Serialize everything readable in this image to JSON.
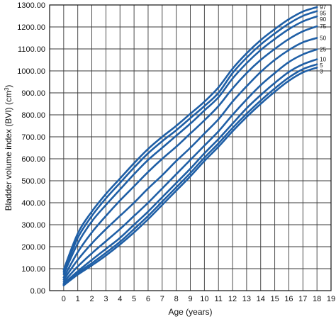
{
  "chart_data": {
    "type": "line",
    "xlabel": "Age (years)",
    "ylabel": "Bladder volume index (BVI) (cm",
    "ylabel_sup": "3",
    "ylabel_close": ")",
    "xlim": [
      -1,
      19
    ],
    "ylim": [
      0,
      1300
    ],
    "x_ticks": [
      "0",
      "1",
      "2",
      "3",
      "4",
      "5",
      "6",
      "7",
      "8",
      "9",
      "10",
      "11",
      "12",
      "13",
      "14",
      "15",
      "16",
      "17",
      "18",
      "19"
    ],
    "y_ticks": [
      "0.00",
      "100.00",
      "200.00",
      "300.00",
      "400.00",
      "500.00",
      "600.00",
      "700.00",
      "800.00",
      "900.00",
      "1000.00",
      "1100.00",
      "1200.00",
      "1300.00"
    ],
    "grid": true,
    "line_color": "#1f5fa6",
    "x": [
      0,
      1,
      2,
      3,
      4,
      5,
      6,
      7,
      8,
      9,
      10,
      11,
      12,
      13,
      14,
      15,
      16,
      17,
      18
    ],
    "series": [
      {
        "name": "97",
        "values": [
          95,
          260,
          360,
          440,
          510,
          580,
          645,
          700,
          750,
          805,
          860,
          925,
          1010,
          1080,
          1140,
          1190,
          1235,
          1270,
          1290
        ]
      },
      {
        "name": "95",
        "values": [
          85,
          240,
          340,
          420,
          490,
          560,
          625,
          680,
          730,
          785,
          840,
          900,
          990,
          1060,
          1120,
          1170,
          1215,
          1250,
          1272
        ]
      },
      {
        "name": "90",
        "values": [
          75,
          215,
          315,
          390,
          460,
          530,
          595,
          650,
          705,
          760,
          820,
          880,
          965,
          1035,
          1095,
          1145,
          1190,
          1225,
          1248
        ]
      },
      {
        "name": "75",
        "values": [
          60,
          175,
          265,
          340,
          410,
          475,
          540,
          600,
          655,
          715,
          775,
          840,
          920,
          990,
          1050,
          1100,
          1145,
          1180,
          1203
        ]
      },
      {
        "name": "50",
        "values": [
          50,
          140,
          215,
          280,
          340,
          400,
          465,
          525,
          590,
          650,
          715,
          780,
          860,
          930,
          995,
          1050,
          1095,
          1130,
          1150
        ]
      },
      {
        "name": "25",
        "values": [
          40,
          110,
          170,
          225,
          280,
          340,
          400,
          465,
          530,
          595,
          660,
          725,
          800,
          870,
          935,
          990,
          1040,
          1075,
          1098
        ]
      },
      {
        "name": "10",
        "values": [
          32,
          88,
          140,
          190,
          240,
          300,
          360,
          425,
          490,
          555,
          625,
          690,
          760,
          830,
          890,
          945,
          995,
          1030,
          1053
        ]
      },
      {
        "name": "5",
        "values": [
          28,
          80,
          125,
          172,
          222,
          280,
          340,
          405,
          470,
          535,
          605,
          670,
          740,
          805,
          865,
          920,
          970,
          1008,
          1030
        ]
      },
      {
        "name": "3",
        "values": [
          24,
          73,
          115,
          160,
          210,
          265,
          325,
          390,
          455,
          520,
          590,
          655,
          725,
          790,
          850,
          905,
          955,
          993,
          1015
        ]
      }
    ]
  }
}
